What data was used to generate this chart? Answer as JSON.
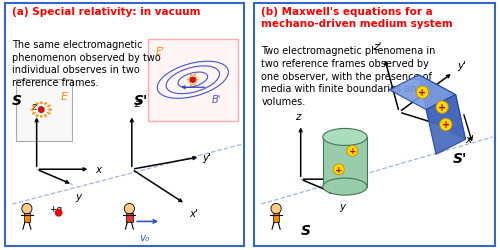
{
  "fig_width": 5.0,
  "fig_height": 2.51,
  "dpi": 100,
  "bg_color": "#ffffff",
  "border_color": "#3366cc",
  "border_lw": 1.5,
  "panel_a": {
    "title": "(a) Special relativity: in vacuum",
    "title_color": "#ff0000",
    "title_fontsize": 7.5,
    "body_text": "The same electromagnetic\nphenomenon observed by two\nindividual observes in two\nreference frames.",
    "body_fontsize": 7.0,
    "body_color": "#000000"
  },
  "panel_b": {
    "title": "(b) Maxwell's equations for a\nmechano-driven medium system",
    "title_color": "#ff0000",
    "title_fontsize": 7.5,
    "body_text": "Two electromagnetic phenomena in\ntwo reference frames observed by\none observer, with the presence of\nmedia with finite boundaries and\nvolumes.",
    "body_fontsize": 7.0,
    "body_color": "#000000"
  },
  "axis_color": "#000000",
  "dashed_color": "#7799cc",
  "orange_color": "#ff8800",
  "red_color": "#cc0000",
  "blue_color": "#3355cc",
  "green_color": "#66bb88",
  "cube_face_front": "#5577cc",
  "cube_face_top": "#7799dd",
  "cube_face_right": "#4466bb",
  "cube_edge": "#2244aa",
  "cyl_body": "#99ccaa",
  "cyl_edge": "#447755",
  "skin_color": "#ffcc88",
  "ep_box_edge": "#ffaaaa",
  "ep_box_face": "#fff5f5",
  "e_box_edge": "#aaaaaa",
  "e_box_face": "#f8f8f8"
}
